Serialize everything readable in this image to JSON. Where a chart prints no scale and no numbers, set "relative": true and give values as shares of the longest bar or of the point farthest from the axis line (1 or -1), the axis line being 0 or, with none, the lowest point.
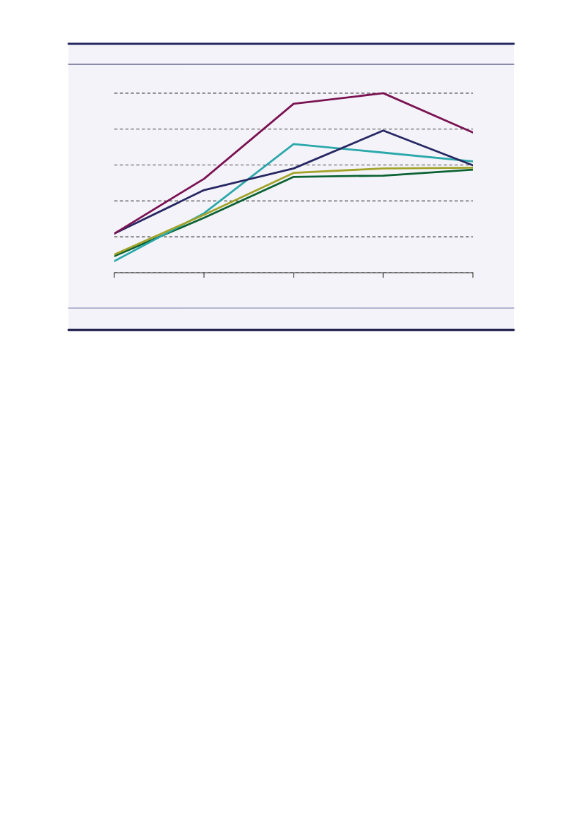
{
  "chart_data": {
    "type": "line",
    "relative": true,
    "categories": [
      null,
      null,
      null,
      null,
      null
    ],
    "series": [
      {
        "color": "#0b6232",
        "values": [
          0.093,
          0.306,
          0.534,
          0.541,
          0.574
        ]
      },
      {
        "color": "#2ba8aa",
        "values": [
          0.065,
          0.331,
          0.717,
          0.669,
          0.62
        ]
      },
      {
        "color": "#272763",
        "values": [
          0.218,
          0.46,
          0.581,
          0.792,
          0.598
        ]
      },
      {
        "color": "#a3a32a",
        "values": [
          0.101,
          0.323,
          0.556,
          0.581,
          0.585
        ]
      },
      {
        "color": "#7b1352",
        "values": [
          0.218,
          0.523,
          0.941,
          1,
          0.781
        ]
      }
    ],
    "grid": "y",
    "marker": "none",
    "line_style": "solid"
  }
}
